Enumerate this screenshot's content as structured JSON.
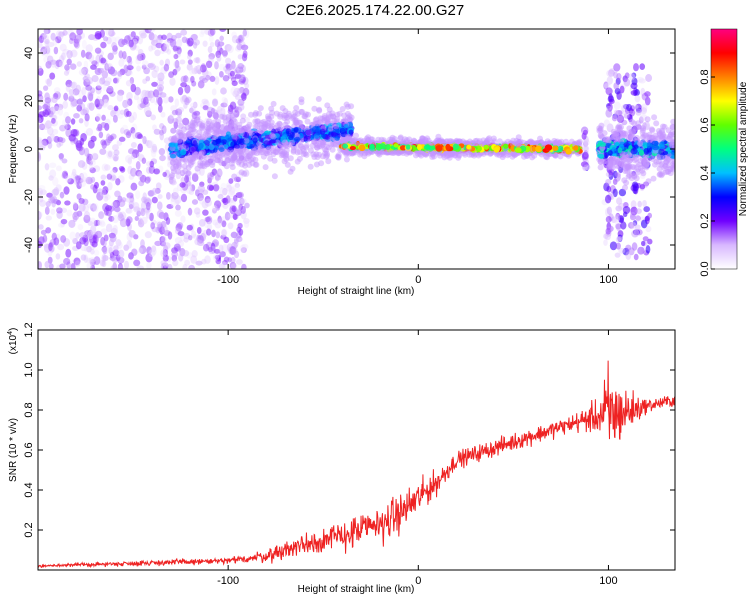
{
  "title": "C2E6.2025.174.22.00.G27",
  "chart_data": [
    {
      "type": "heatmap",
      "xlabel": "Height of straight line (km)",
      "ylabel": "Frequency (Hz)",
      "xlim": [
        -200,
        135
      ],
      "ylim": [
        -50,
        50
      ],
      "x_ticks": [
        -100,
        0,
        100
      ],
      "x_tick_labels": [
        "-100",
        "0",
        "100"
      ],
      "y_ticks": [
        -40,
        -20,
        0,
        20,
        40
      ],
      "y_tick_labels": [
        "-40",
        "-20",
        "0",
        "20",
        "40"
      ],
      "colorbar": {
        "label": "Normalized spectral amplitude",
        "range": [
          0,
          1
        ],
        "ticks": [
          0.0,
          0.2,
          0.4,
          0.6,
          0.8
        ],
        "tick_labels": [
          "0.0",
          "0.2",
          "0.4",
          "0.6",
          "0.8"
        ],
        "colormap": [
          "#ffffff",
          "#d8b8ff",
          "#7000ff",
          "#0000ff",
          "#00c0ff",
          "#00ff80",
          "#60ff00",
          "#ffff00",
          "#ff8000",
          "#ff0000",
          "#ff0080"
        ]
      },
      "features": [
        {
          "region": "scattered noise",
          "x": [
            -200,
            -90
          ],
          "freq_range": [
            -50,
            50
          ],
          "amplitude": 0.15
        },
        {
          "region": "ridge onset",
          "x": [
            -130,
            -35
          ],
          "center_freq": [
            0,
            8
          ],
          "amplitude": 0.4
        },
        {
          "region": "main ridge",
          "x": [
            -40,
            85
          ],
          "center_freq": [
            1,
            0
          ],
          "amplitude": 0.85
        },
        {
          "region": "spike",
          "x": [
            88,
            88
          ],
          "freq_range": [
            -8,
            8
          ],
          "amplitude": 0.2
        },
        {
          "region": "late scatter",
          "x": [
            98,
            122
          ],
          "freq_range": [
            -45,
            35
          ],
          "amplitude": 0.2
        },
        {
          "region": "tail ridge",
          "x": [
            95,
            135
          ],
          "center_freq": [
            0,
            0
          ],
          "amplitude": 0.45
        }
      ]
    },
    {
      "type": "line",
      "xlabel": "Height of straight line (km)",
      "ylabel": "SNR (10 * v/v)",
      "y_multiplier": "(x10",
      "y_multiplier_exp": "4",
      "y_multiplier_close": ")",
      "xlim": [
        -200,
        135
      ],
      "ylim": [
        0,
        12000
      ],
      "x_ticks": [
        -100,
        0,
        100
      ],
      "x_tick_labels": [
        "-100",
        "0",
        "100"
      ],
      "y_ticks": [
        2000,
        4000,
        6000,
        8000,
        10000,
        12000
      ],
      "y_tick_labels": [
        "0.2",
        "0.4",
        "0.6",
        "0.8",
        "1.0",
        "1.2"
      ],
      "color": "#ee2222",
      "envelope_x": [
        -200,
        -125,
        -100,
        -80,
        -60,
        -40,
        -20,
        -10,
        0,
        10,
        20,
        40,
        60,
        80,
        95,
        100,
        105,
        120,
        135
      ],
      "envelope_y": [
        200,
        400,
        450,
        700,
        1300,
        1700,
        2300,
        2800,
        3600,
        4400,
        5500,
        6100,
        6700,
        7300,
        7700,
        7800,
        7800,
        8200,
        8500
      ],
      "noise_amplitude": [
        60,
        150,
        150,
        300,
        600,
        700,
        900,
        900,
        800,
        600,
        400,
        400,
        400,
        400,
        800,
        2500,
        1500,
        300,
        300
      ]
    }
  ]
}
